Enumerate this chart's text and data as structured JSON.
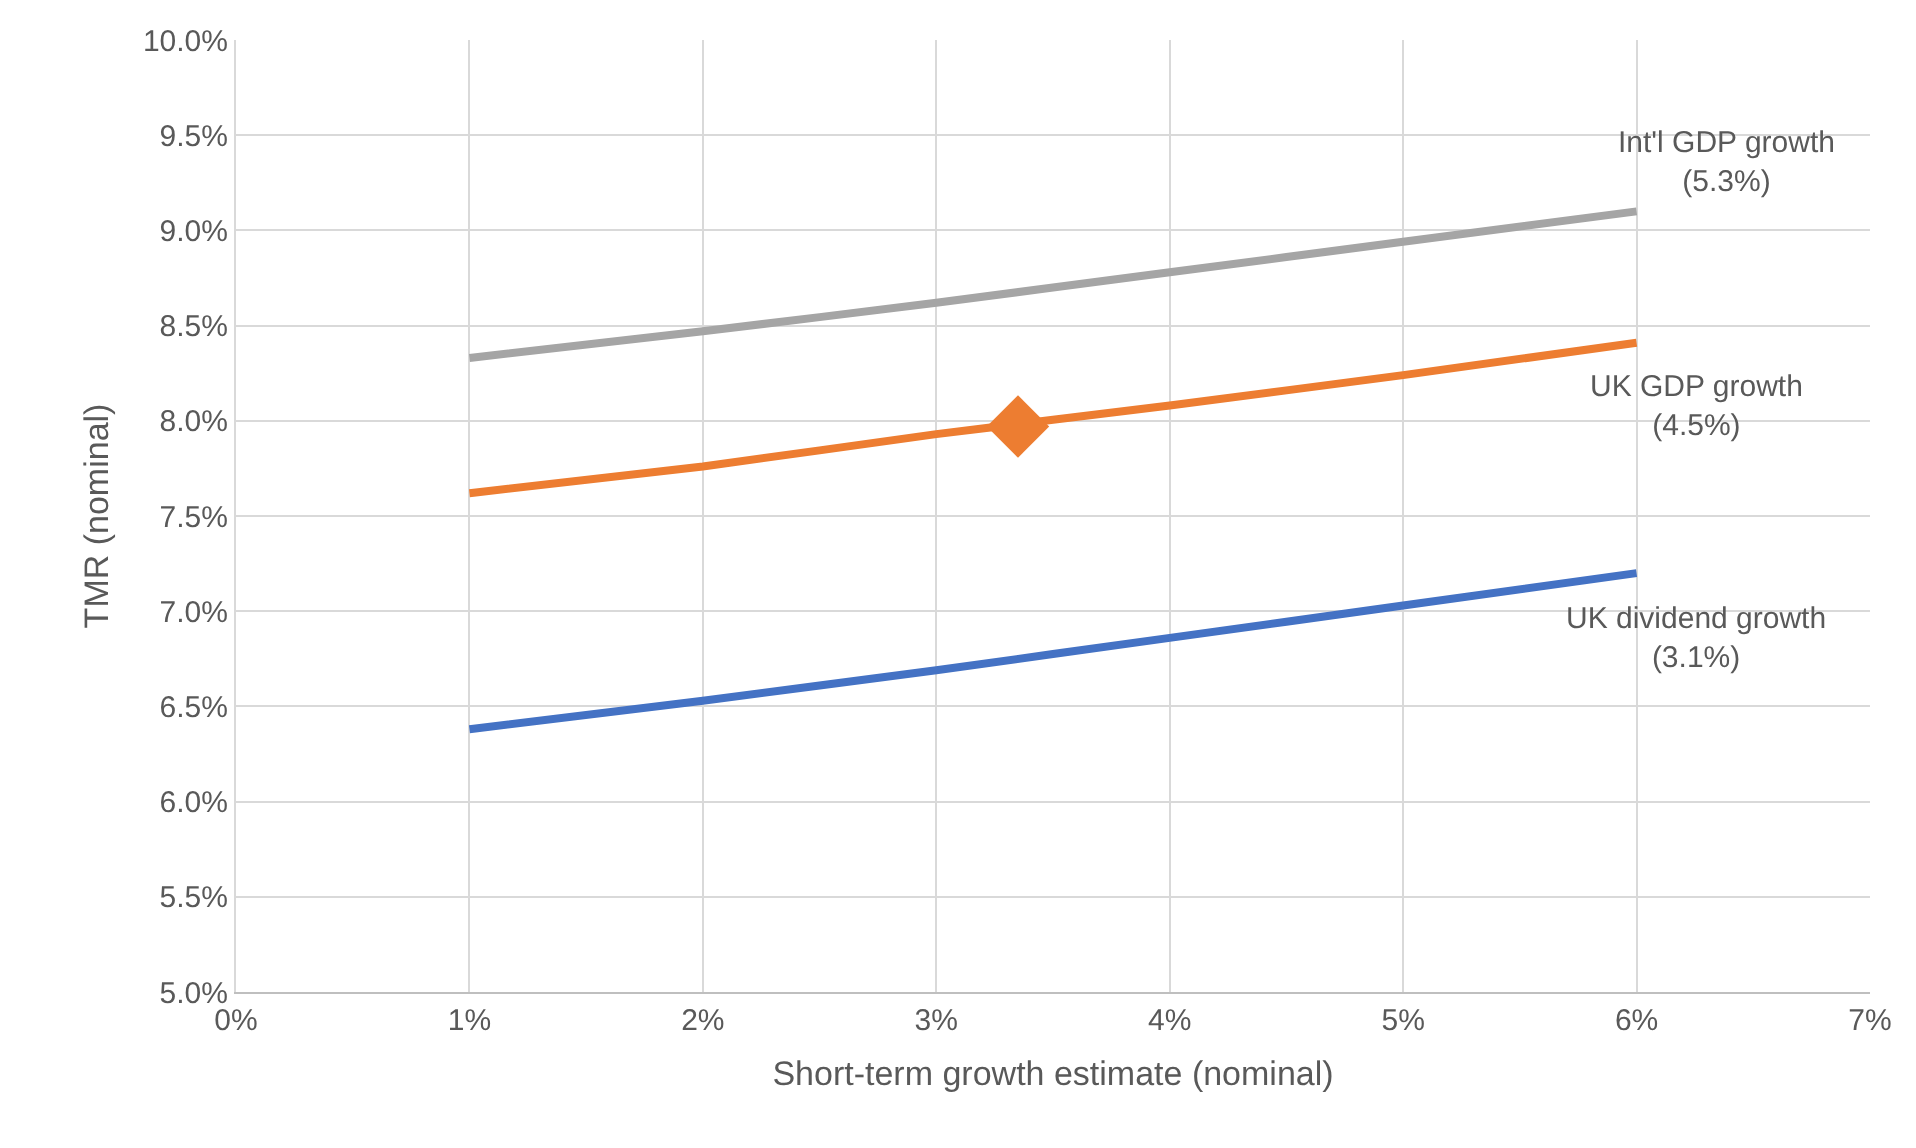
{
  "chart_data": {
    "type": "line",
    "xlabel": "Short-term growth estimate (nominal)",
    "ylabel": "TMR (nominal)",
    "x": [
      1,
      2,
      3,
      4,
      5,
      6
    ],
    "series": [
      {
        "name": "Int'l GDP growth (5.3%)",
        "color": "#a5a5a5",
        "values": [
          8.33,
          8.47,
          8.62,
          8.78,
          8.94,
          9.1
        ]
      },
      {
        "name": "UK GDP growth (4.5%)",
        "color": "#ed7d31",
        "values": [
          7.62,
          7.76,
          7.93,
          8.08,
          8.24,
          8.41
        ]
      },
      {
        "name": "UK dividend growth (3.1%)",
        "color": "#4472c4",
        "values": [
          6.38,
          6.53,
          6.69,
          6.86,
          7.03,
          7.2
        ]
      },
      {
        "type": "scatter",
        "color": "#ed7d31",
        "marker": "diamond",
        "x": [
          3.35
        ],
        "values": [
          7.97
        ]
      }
    ],
    "marker": "none",
    "line_style": "solid",
    "grid": true,
    "legend": false,
    "xlim": [
      0,
      7
    ],
    "xticks": [
      {
        "value": 0,
        "label": "0%"
      },
      {
        "value": 1,
        "label": "1%"
      },
      {
        "value": 2,
        "label": "2%"
      },
      {
        "value": 3,
        "label": "3%"
      },
      {
        "value": 4,
        "label": "4%"
      },
      {
        "value": 5,
        "label": "5%"
      },
      {
        "value": 6,
        "label": "6%"
      },
      {
        "value": 7,
        "label": "7%"
      }
    ],
    "ylim": [
      5,
      10
    ],
    "yticks": [
      {
        "value": 5,
        "label": "5.0%"
      },
      {
        "value": 5.5,
        "label": "5.5%"
      },
      {
        "value": 6,
        "label": "6.0%"
      },
      {
        "value": 6.5,
        "label": "6.5%"
      },
      {
        "value": 7,
        "label": "7.0%"
      },
      {
        "value": 7.5,
        "label": "7.5%"
      },
      {
        "value": 8,
        "label": "8.0%"
      },
      {
        "value": 8.5,
        "label": "8.5%"
      },
      {
        "value": 9,
        "label": "9.0%"
      },
      {
        "value": 9.5,
        "label": "9.5%"
      },
      {
        "value": 10,
        "label": "10.0%"
      }
    ]
  }
}
